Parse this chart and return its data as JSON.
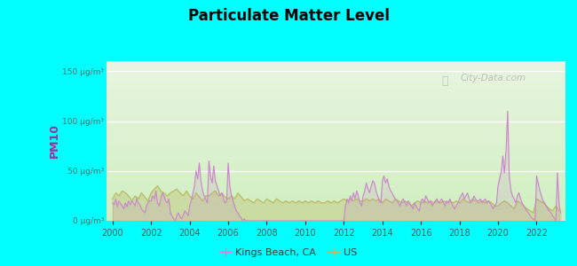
{
  "title": "Particulate Matter Level",
  "ylabel": "PM10",
  "background_outer": "#00FFFF",
  "ylim": [
    0,
    160
  ],
  "yticks": [
    0,
    50,
    100,
    150
  ],
  "ytick_labels": [
    "0 μg/m³",
    "50 μg/m³",
    "100 μg/m³",
    "150 μg/m³"
  ],
  "xlim": [
    1999.7,
    2023.5
  ],
  "xticks": [
    2000,
    2002,
    2004,
    2006,
    2008,
    2010,
    2012,
    2014,
    2016,
    2018,
    2020,
    2022
  ],
  "color_kings": "#cc88cc",
  "color_us": "#bbbb66",
  "legend_label_kings": "Kings Beach, CA",
  "legend_label_us": "US",
  "watermark": "City-Data.com",
  "kings_x": [
    2000.0,
    2000.08,
    2000.17,
    2000.25,
    2000.33,
    2000.42,
    2000.5,
    2000.58,
    2000.67,
    2000.75,
    2000.83,
    2000.92,
    2001.0,
    2001.08,
    2001.17,
    2001.25,
    2001.33,
    2001.42,
    2001.5,
    2001.58,
    2001.67,
    2001.75,
    2001.83,
    2001.92,
    2002.0,
    2002.08,
    2002.17,
    2002.25,
    2002.33,
    2002.42,
    2002.5,
    2002.58,
    2002.67,
    2002.75,
    2002.83,
    2002.92,
    2003.0,
    2003.08,
    2003.17,
    2003.25,
    2003.33,
    2003.42,
    2003.5,
    2003.58,
    2003.67,
    2003.75,
    2003.83,
    2003.92,
    2004.0,
    2004.08,
    2004.17,
    2004.25,
    2004.33,
    2004.42,
    2004.5,
    2004.58,
    2004.67,
    2004.75,
    2004.83,
    2004.92,
    2005.0,
    2005.08,
    2005.17,
    2005.25,
    2005.33,
    2005.42,
    2005.5,
    2005.58,
    2005.67,
    2005.75,
    2005.83,
    2005.92,
    2006.0,
    2006.08,
    2006.17,
    2006.25,
    2006.33,
    2006.42,
    2006.5,
    2006.58,
    2006.67,
    2006.75,
    2006.83,
    2006.92,
    2007.0,
    2007.08,
    2007.17,
    2007.25,
    2007.33,
    2007.42,
    2007.5,
    2007.58,
    2007.67,
    2007.75,
    2007.83,
    2007.92,
    2008.0,
    2008.08,
    2008.17,
    2008.25,
    2008.33,
    2008.42,
    2008.5,
    2008.58,
    2008.67,
    2008.75,
    2008.83,
    2008.92,
    2009.0,
    2009.08,
    2009.17,
    2009.25,
    2009.33,
    2009.42,
    2009.5,
    2009.58,
    2009.67,
    2009.75,
    2009.83,
    2009.92,
    2010.0,
    2010.08,
    2010.17,
    2010.25,
    2010.33,
    2010.42,
    2010.5,
    2010.58,
    2010.67,
    2010.75,
    2010.83,
    2010.92,
    2011.0,
    2011.08,
    2011.17,
    2011.25,
    2011.33,
    2011.42,
    2011.5,
    2011.58,
    2011.67,
    2011.75,
    2011.83,
    2011.92,
    2012.0,
    2012.08,
    2012.17,
    2012.25,
    2012.33,
    2012.42,
    2012.5,
    2012.58,
    2012.67,
    2012.75,
    2012.83,
    2012.92,
    2013.0,
    2013.08,
    2013.17,
    2013.25,
    2013.33,
    2013.42,
    2013.5,
    2013.58,
    2013.67,
    2013.75,
    2013.83,
    2013.92,
    2014.0,
    2014.08,
    2014.17,
    2014.25,
    2014.33,
    2014.42,
    2014.5,
    2014.58,
    2014.67,
    2014.75,
    2014.83,
    2014.92,
    2015.0,
    2015.08,
    2015.17,
    2015.25,
    2015.33,
    2015.42,
    2015.5,
    2015.58,
    2015.67,
    2015.75,
    2015.83,
    2015.92,
    2016.0,
    2016.08,
    2016.17,
    2016.25,
    2016.33,
    2016.42,
    2016.5,
    2016.58,
    2016.67,
    2016.75,
    2016.83,
    2016.92,
    2017.0,
    2017.08,
    2017.17,
    2017.25,
    2017.33,
    2017.42,
    2017.5,
    2017.58,
    2017.67,
    2017.75,
    2017.83,
    2017.92,
    2018.0,
    2018.08,
    2018.17,
    2018.25,
    2018.33,
    2018.42,
    2018.5,
    2018.58,
    2018.67,
    2018.75,
    2018.83,
    2018.92,
    2019.0,
    2019.08,
    2019.17,
    2019.25,
    2019.33,
    2019.42,
    2019.5,
    2019.58,
    2019.67,
    2019.75,
    2019.83,
    2019.92,
    2020.0,
    2020.08,
    2020.17,
    2020.25,
    2020.33,
    2020.42,
    2020.5,
    2020.58,
    2020.67,
    2020.75,
    2020.83,
    2020.92,
    2021.0,
    2021.08,
    2021.17,
    2021.25,
    2021.33,
    2021.42,
    2021.5,
    2021.58,
    2021.67,
    2021.75,
    2021.83,
    2021.92,
    2022.0,
    2022.08,
    2022.17,
    2022.25,
    2022.33,
    2022.42,
    2022.5,
    2022.58,
    2022.67,
    2022.75,
    2022.83,
    2022.92,
    2023.0,
    2023.08,
    2023.17,
    2023.25
  ],
  "kings_y": [
    18,
    16,
    22,
    14,
    20,
    17,
    15,
    12,
    18,
    14,
    20,
    16,
    20,
    18,
    15,
    22,
    18,
    16,
    12,
    10,
    8,
    14,
    18,
    20,
    20,
    25,
    22,
    30,
    18,
    15,
    22,
    28,
    25,
    20,
    18,
    22,
    8,
    5,
    2,
    0,
    5,
    8,
    4,
    2,
    6,
    10,
    8,
    5,
    15,
    20,
    28,
    35,
    50,
    42,
    58,
    40,
    30,
    25,
    22,
    18,
    60,
    45,
    38,
    55,
    40,
    35,
    30,
    25,
    28,
    22,
    18,
    20,
    58,
    35,
    25,
    20,
    15,
    10,
    8,
    5,
    3,
    0,
    2,
    0,
    0,
    0,
    0,
    0,
    0,
    0,
    0,
    0,
    0,
    0,
    0,
    0,
    0,
    0,
    0,
    0,
    0,
    0,
    0,
    0,
    0,
    0,
    0,
    0,
    0,
    0,
    0,
    0,
    0,
    0,
    0,
    0,
    0,
    0,
    0,
    0,
    0,
    0,
    0,
    0,
    0,
    0,
    0,
    0,
    0,
    0,
    0,
    0,
    0,
    0,
    0,
    0,
    0,
    0,
    0,
    0,
    0,
    0,
    0,
    0,
    0,
    15,
    22,
    18,
    25,
    20,
    28,
    22,
    30,
    25,
    18,
    15,
    25,
    30,
    38,
    32,
    28,
    35,
    40,
    38,
    30,
    25,
    20,
    18,
    40,
    45,
    38,
    42,
    35,
    30,
    28,
    25,
    22,
    20,
    18,
    15,
    20,
    22,
    18,
    15,
    20,
    18,
    15,
    12,
    18,
    15,
    12,
    10,
    20,
    22,
    18,
    25,
    22,
    18,
    20,
    15,
    18,
    20,
    22,
    18,
    20,
    22,
    18,
    15,
    20,
    18,
    22,
    18,
    15,
    12,
    15,
    18,
    22,
    25,
    28,
    22,
    25,
    28,
    22,
    18,
    20,
    25,
    22,
    20,
    20,
    22,
    18,
    20,
    22,
    18,
    20,
    18,
    15,
    12,
    15,
    18,
    35,
    42,
    50,
    65,
    48,
    72,
    110,
    45,
    30,
    25,
    22,
    18,
    25,
    28,
    22,
    18,
    15,
    12,
    10,
    8,
    5,
    3,
    2,
    0,
    45,
    38,
    30,
    25,
    20,
    18,
    15,
    12,
    10,
    8,
    5,
    3,
    0,
    48,
    15,
    8
  ],
  "us_x": [
    2000.0,
    2000.17,
    2000.33,
    2000.5,
    2000.67,
    2000.83,
    2001.0,
    2001.17,
    2001.33,
    2001.5,
    2001.67,
    2001.83,
    2002.0,
    2002.17,
    2002.33,
    2002.5,
    2002.67,
    2002.83,
    2003.0,
    2003.17,
    2003.33,
    2003.5,
    2003.67,
    2003.83,
    2004.0,
    2004.17,
    2004.33,
    2004.5,
    2004.67,
    2004.83,
    2005.0,
    2005.17,
    2005.33,
    2005.5,
    2005.67,
    2005.83,
    2006.0,
    2006.17,
    2006.33,
    2006.5,
    2006.67,
    2006.83,
    2007.0,
    2007.17,
    2007.33,
    2007.5,
    2007.67,
    2007.83,
    2008.0,
    2008.17,
    2008.33,
    2008.5,
    2008.67,
    2008.83,
    2009.0,
    2009.17,
    2009.33,
    2009.5,
    2009.67,
    2009.83,
    2010.0,
    2010.17,
    2010.33,
    2010.5,
    2010.67,
    2010.83,
    2011.0,
    2011.17,
    2011.33,
    2011.5,
    2011.67,
    2011.83,
    2012.0,
    2012.17,
    2012.33,
    2012.5,
    2012.67,
    2012.83,
    2013.0,
    2013.17,
    2013.33,
    2013.5,
    2013.67,
    2013.83,
    2014.0,
    2014.17,
    2014.33,
    2014.5,
    2014.67,
    2014.83,
    2015.0,
    2015.17,
    2015.33,
    2015.5,
    2015.67,
    2015.83,
    2016.0,
    2016.17,
    2016.33,
    2016.5,
    2016.67,
    2016.83,
    2017.0,
    2017.17,
    2017.33,
    2017.5,
    2017.67,
    2017.83,
    2018.0,
    2018.17,
    2018.33,
    2018.5,
    2018.67,
    2018.83,
    2019.0,
    2019.17,
    2019.33,
    2019.5,
    2019.67,
    2019.83,
    2020.0,
    2020.17,
    2020.33,
    2020.5,
    2020.67,
    2020.83,
    2021.0,
    2021.17,
    2021.33,
    2021.5,
    2021.67,
    2021.83,
    2022.0,
    2022.17,
    2022.33,
    2022.5,
    2022.67,
    2022.83,
    2023.0,
    2023.17
  ],
  "us_y": [
    22,
    28,
    25,
    30,
    28,
    25,
    20,
    25,
    22,
    28,
    24,
    20,
    28,
    32,
    35,
    30,
    28,
    25,
    28,
    30,
    32,
    28,
    25,
    30,
    25,
    22,
    28,
    24,
    20,
    25,
    25,
    28,
    30,
    25,
    28,
    24,
    22,
    25,
    22,
    28,
    24,
    20,
    22,
    20,
    18,
    22,
    20,
    18,
    22,
    20,
    18,
    22,
    20,
    18,
    20,
    18,
    20,
    18,
    20,
    18,
    20,
    18,
    20,
    18,
    20,
    18,
    18,
    20,
    18,
    20,
    18,
    20,
    22,
    20,
    22,
    20,
    22,
    20,
    20,
    22,
    20,
    22,
    20,
    22,
    18,
    22,
    20,
    18,
    22,
    20,
    18,
    20,
    18,
    15,
    18,
    20,
    18,
    20,
    18,
    20,
    18,
    20,
    18,
    20,
    18,
    20,
    18,
    20,
    18,
    22,
    20,
    18,
    22,
    20,
    18,
    20,
    18,
    20,
    18,
    15,
    15,
    18,
    20,
    18,
    15,
    12,
    20,
    18,
    15,
    12,
    10,
    8,
    22,
    20,
    18,
    15,
    12,
    10,
    15,
    10
  ]
}
